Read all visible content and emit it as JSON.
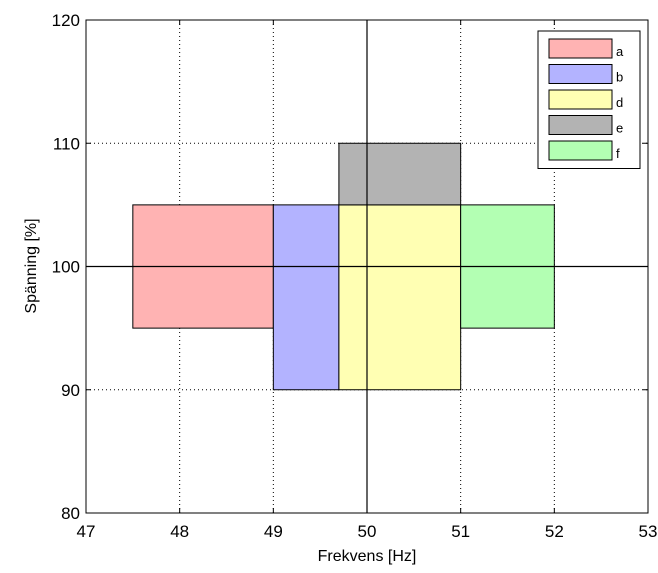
{
  "chart_data": {
    "type": "area",
    "title": "",
    "xlabel": "Frekvens [Hz]",
    "ylabel": "Spänning [%]",
    "xlim": [
      47,
      53
    ],
    "ylim": [
      80,
      120
    ],
    "xticks": [
      47,
      48,
      49,
      50,
      51,
      52,
      53
    ],
    "yticks": [
      80,
      90,
      100,
      110,
      120
    ],
    "grid": true,
    "reference_lines": {
      "x": 50,
      "y": 100
    },
    "legend_position": "top-right",
    "series": [
      {
        "name": "a",
        "color": "#ffb3b3",
        "x_range": [
          47.5,
          49.0
        ],
        "y_range": [
          95,
          105
        ]
      },
      {
        "name": "b",
        "color": "#b3b3ff",
        "x_range": [
          49.0,
          49.7
        ],
        "y_range": [
          90,
          105
        ]
      },
      {
        "name": "d",
        "color": "#ffffb3",
        "x_range": [
          49.7,
          51.0
        ],
        "y_range": [
          90,
          105
        ]
      },
      {
        "name": "e",
        "color": "#b3b3b3",
        "x_range": [
          49.7,
          51.0
        ],
        "y_range": [
          105,
          110
        ]
      },
      {
        "name": "f",
        "color": "#b3ffb3",
        "x_range": [
          51.0,
          52.0
        ],
        "y_range": [
          95,
          105
        ]
      }
    ]
  }
}
